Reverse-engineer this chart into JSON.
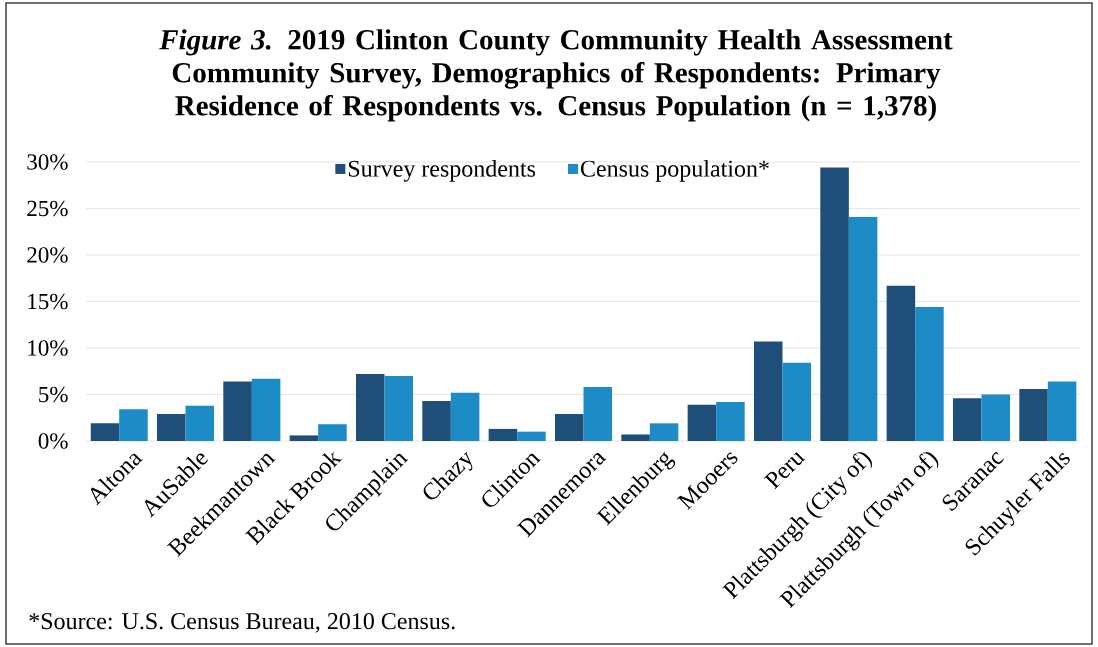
{
  "chart_data": {
    "type": "bar",
    "title": "*Figure 3.* 2019 Clinton County Community Health Assessment Community Survey, Demographics of Respondents: Primary Residence of Respondents vs. Census Population (n = 1,378)",
    "categories": [
      "Altona",
      "AuSable",
      "Beekmantown",
      "Black Brook",
      "Champlain",
      "Chazy",
      "Clinton",
      "Dannemora",
      "Ellenburg",
      "Mooers",
      "Peru",
      "Plattsburgh (City of)",
      "Plattsburgh (Town of)",
      "Saranac",
      "Schuyler Falls"
    ],
    "series": [
      {
        "name": "Survey respondents",
        "color": "#1f4e79",
        "values": [
          1.9,
          2.9,
          6.4,
          0.6,
          7.2,
          4.3,
          1.3,
          2.9,
          0.7,
          3.9,
          10.7,
          29.4,
          16.7,
          4.6,
          5.6
        ]
      },
      {
        "name": "Census population*",
        "color": "#1d8bc5",
        "values": [
          3.4,
          3.8,
          6.7,
          1.8,
          7.0,
          5.2,
          1.0,
          5.8,
          1.9,
          4.2,
          8.4,
          24.1,
          14.4,
          5.0,
          6.4
        ]
      }
    ],
    "ylim": [
      0,
      30
    ],
    "yticks": [
      {
        "value": 0,
        "label": "0%"
      },
      {
        "value": 5,
        "label": "5%"
      },
      {
        "value": 10,
        "label": "10%"
      },
      {
        "value": 15,
        "label": "15%"
      },
      {
        "value": 20,
        "label": "20%"
      },
      {
        "value": 25,
        "label": "25%"
      },
      {
        "value": 30,
        "label": "30%"
      }
    ],
    "grid": "y",
    "legend": "top",
    "annotations": [
      "*Source: U.S. Census Bureau, 2010 Census."
    ]
  }
}
